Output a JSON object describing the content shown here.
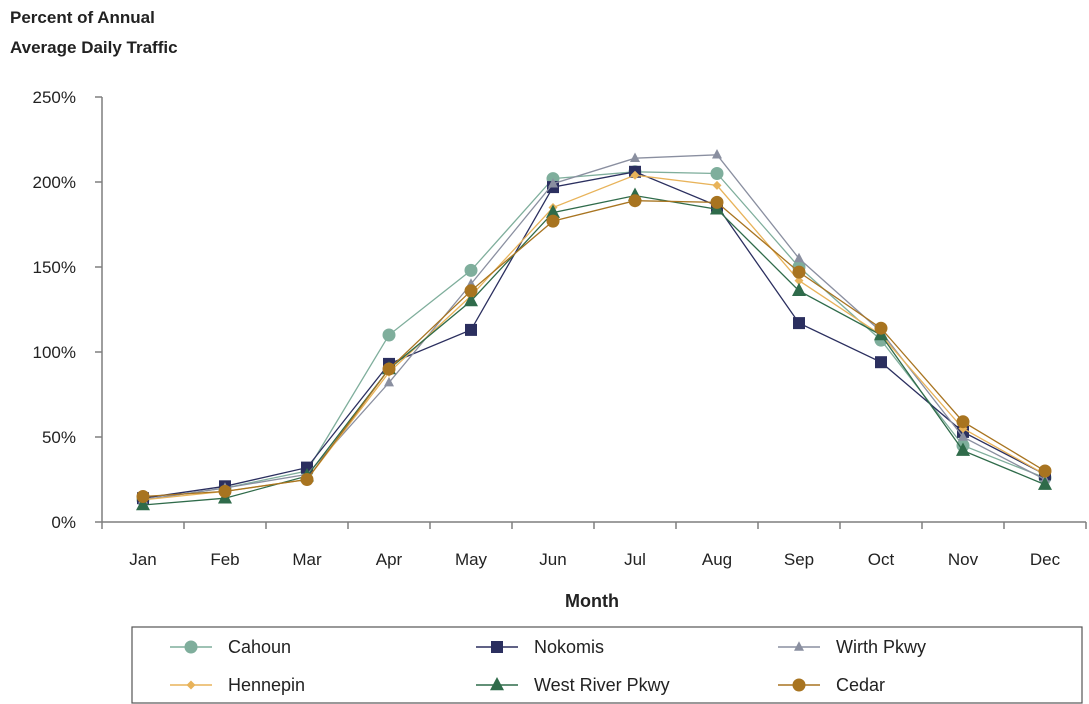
{
  "chart_data": {
    "type": "line",
    "ylabel": [
      "Percent of Annual",
      "Average Daily  Traffic"
    ],
    "xlabel": "Month",
    "ylim": [
      0,
      250
    ],
    "yticks": [
      "0%",
      "50%",
      "100%",
      "150%",
      "200%",
      "250%"
    ],
    "ytick_values": [
      0,
      50,
      100,
      150,
      200,
      250
    ],
    "categories": [
      "Jan",
      "Feb",
      "Mar",
      "Apr",
      "May",
      "Jun",
      "Jul",
      "Aug",
      "Sep",
      "Oct",
      "Nov",
      "Dec"
    ],
    "grid": false,
    "legend_position": "bottom",
    "series": [
      {
        "name": "Cahoun",
        "color": "#7fae9c",
        "marker": "circle",
        "values": [
          13,
          20,
          30,
          110,
          148,
          202,
          206,
          205,
          150,
          107,
          45,
          26
        ]
      },
      {
        "name": "Nokomis",
        "color": "#2b2f5f",
        "marker": "square",
        "values": [
          14,
          21,
          32,
          93,
          113,
          197,
          206,
          186,
          117,
          94,
          53,
          28
        ]
      },
      {
        "name": "Wirth Pkwy",
        "color": "#8a8fa0",
        "marker": "triangle",
        "values": [
          13,
          20,
          28,
          82,
          140,
          199,
          214,
          216,
          155,
          112,
          50,
          25
        ]
      },
      {
        "name": "Hennepin",
        "color": "#e8b35a",
        "marker": "diamond",
        "values": [
          13,
          18,
          25,
          88,
          133,
          185,
          204,
          198,
          142,
          110,
          55,
          28
        ]
      },
      {
        "name": "West River Pkwy",
        "color": "#2f6b4a",
        "marker": "triangle",
        "values": [
          10,
          14,
          27,
          90,
          130,
          182,
          192,
          184,
          136,
          110,
          42,
          22
        ]
      },
      {
        "name": "Cedar",
        "color": "#a87420",
        "marker": "circle",
        "values": [
          15,
          18,
          25,
          90,
          136,
          177,
          189,
          188,
          147,
          114,
          59,
          30
        ]
      }
    ]
  }
}
